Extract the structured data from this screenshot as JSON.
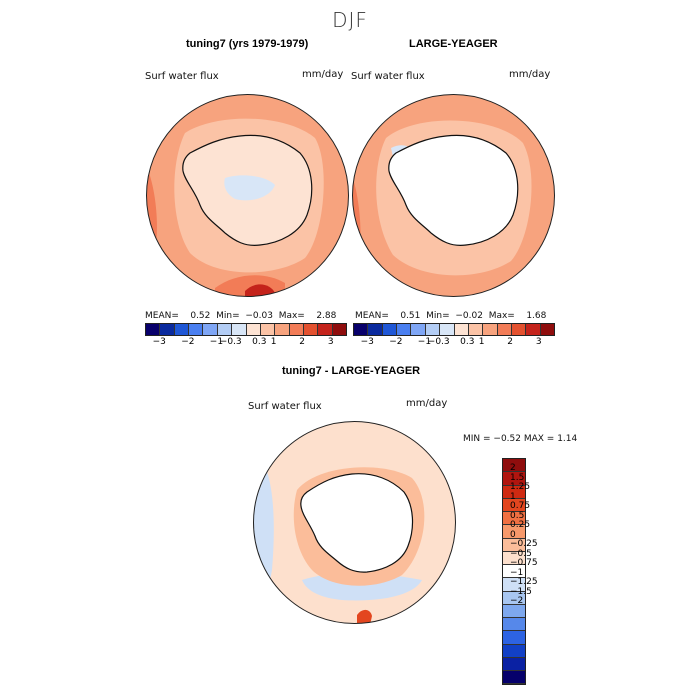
{
  "figure": {
    "season": "DJF"
  },
  "panels": [
    {
      "title": "tuning7 (yrs 1979-1979)",
      "variable": "Surf water flux",
      "units": "mm/day",
      "mean_label": "MEAN=",
      "mean": "0.52",
      "min_label": "Min=",
      "min": "−0.03",
      "max_label": "Max=",
      "max": "2.88"
    },
    {
      "title": "LARGE-YEAGER",
      "variable": "Surf water flux",
      "units": "mm/day",
      "mean_label": "MEAN=",
      "mean": "0.51",
      "min_label": "Min=",
      "min": "−0.02",
      "max_label": "Max=",
      "max": "1.68"
    },
    {
      "title": "tuning7 - LARGE-YEAGER",
      "variable": "Surf water flux",
      "units": "mm/day",
      "minmax_text": "MIN =   −0.52  MAX =    1.14"
    }
  ],
  "colorbar_top": {
    "colors": [
      "#08006b",
      "#0a2a9e",
      "#1f57d6",
      "#4a7ff0",
      "#7fa6f5",
      "#b3cdf5",
      "#d8e6f7",
      "#fde3d3",
      "#fbc3a6",
      "#f7a37e",
      "#f27c57",
      "#e3512f",
      "#c4231b",
      "#8f0d0d"
    ],
    "tick_labels": [
      "−3",
      "−2",
      "−1",
      "−0.3",
      "0.3",
      "1",
      "2",
      "3"
    ]
  },
  "colorbar_diff": {
    "colors": [
      "#8f0d0d",
      "#b0150f",
      "#cf2a12",
      "#e3461f",
      "#f07042",
      "#f7996b",
      "#fbbd9a",
      "#fde0cd",
      "#ffffff",
      "#cfe0f6",
      "#a8c6f0",
      "#7ea8ee",
      "#5688ea",
      "#2d63e3",
      "#1240c6",
      "#0a21a3",
      "#06006b"
    ],
    "tick_labels": [
      "2",
      "1.5",
      "1.25",
      "1",
      "0.75",
      "0.5",
      "0.25",
      "0",
      "−0.25",
      "−0.5",
      "−0.75",
      "−1",
      "−1.25",
      "−1.5",
      "−2"
    ]
  },
  "chart_data": [
    {
      "type": "heatmap",
      "title": "tuning7 (yrs 1979-1979)",
      "variable": "Surf water flux",
      "units": "mm/day",
      "projection": "south polar stereographic",
      "stats": {
        "mean": 0.52,
        "min": -0.03,
        "max": 2.88
      },
      "colorbar_levels": [
        -3,
        -2,
        -1,
        -0.3,
        0.3,
        1,
        2,
        3
      ]
    },
    {
      "type": "heatmap",
      "title": "LARGE-YEAGER",
      "variable": "Surf water flux",
      "units": "mm/day",
      "projection": "south polar stereographic",
      "stats": {
        "mean": 0.51,
        "min": -0.02,
        "max": 1.68
      },
      "colorbar_levels": [
        -3,
        -2,
        -1,
        -0.3,
        0.3,
        1,
        2,
        3
      ]
    },
    {
      "type": "heatmap",
      "title": "tuning7 - LARGE-YEAGER",
      "variable": "Surf water flux",
      "units": "mm/day",
      "projection": "south polar stereographic",
      "stats": {
        "min": -0.52,
        "max": 1.14
      },
      "colorbar_levels": [
        -2,
        -1.5,
        -1.25,
        -1,
        -0.75,
        -0.5,
        -0.25,
        0,
        0.25,
        0.5,
        0.75,
        1,
        1.25,
        1.5,
        2
      ]
    }
  ]
}
